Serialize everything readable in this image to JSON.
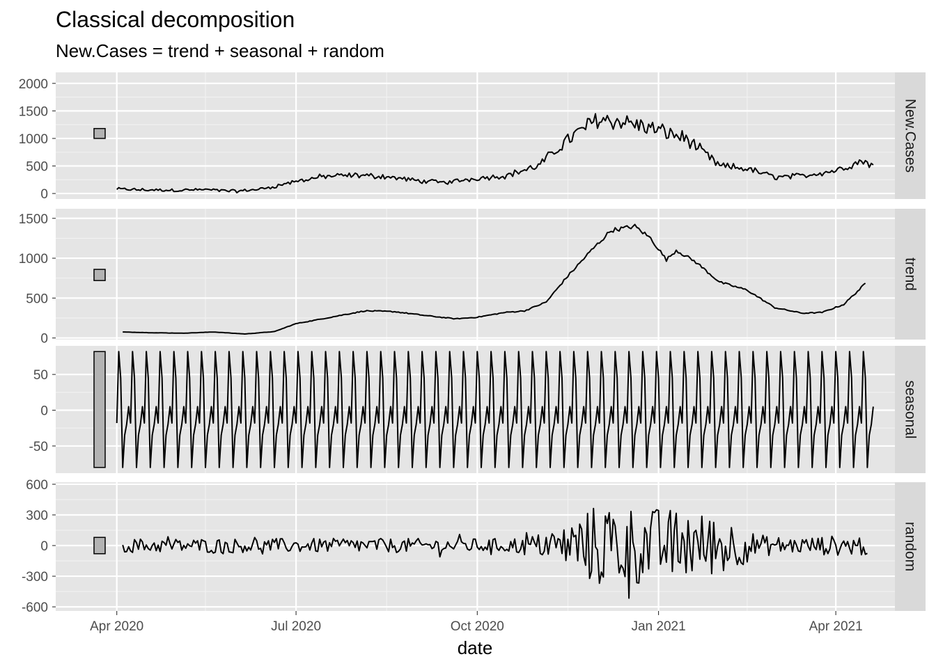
{
  "chart_data": {
    "type": "line",
    "title": "Classical decomposition",
    "subtitle": "New.Cases = trend + seasonal + random",
    "xlabel": "date",
    "x_range": [
      "2020-03-01",
      "2021-05-01"
    ],
    "x_ticks": [
      {
        "date": "2020-04-01",
        "label": "Apr 2020"
      },
      {
        "date": "2020-07-01",
        "label": "Jul 2020"
      },
      {
        "date": "2020-10-01",
        "label": "Oct 2020"
      },
      {
        "date": "2021-01-01",
        "label": "Jan 2021"
      },
      {
        "date": "2021-04-01",
        "label": "Apr 2021"
      }
    ],
    "x_minor": [
      "2020-05-16",
      "2020-08-16",
      "2020-11-16",
      "2021-02-15"
    ],
    "background": "#e5e5e5",
    "strip_color": "#d9d9d9",
    "line_color": "#000000",
    "scale_bar_color": "#b3b3b3",
    "panels": [
      {
        "name": "New.Cases",
        "ylim": [
          -100,
          2200
        ],
        "y_ticks": [
          0,
          500,
          1000,
          1500,
          2000
        ],
        "y_tick_labels": [
          "0",
          "500",
          "1000",
          "1500",
          "2000"
        ],
        "scale_bar": [
          1000,
          1180
        ],
        "points": [
          [
            "2020-04-01",
            80
          ],
          [
            "2020-04-15",
            65
          ],
          [
            "2020-05-01",
            60
          ],
          [
            "2020-05-15",
            70
          ],
          [
            "2020-06-01",
            40
          ],
          [
            "2020-06-15",
            90
          ],
          [
            "2020-07-01",
            220
          ],
          [
            "2020-07-15",
            310
          ],
          [
            "2020-08-01",
            330
          ],
          [
            "2020-08-15",
            310
          ],
          [
            "2020-09-01",
            230
          ],
          [
            "2020-09-15",
            200
          ],
          [
            "2020-10-01",
            280
          ],
          [
            "2020-10-15",
            320
          ],
          [
            "2020-11-01",
            500
          ],
          [
            "2020-11-15",
            950
          ],
          [
            "2020-12-01",
            1350
          ],
          [
            "2020-12-15",
            1300
          ],
          [
            "2021-01-01",
            1150
          ],
          [
            "2021-01-15",
            1000
          ],
          [
            "2021-02-01",
            500
          ],
          [
            "2021-02-15",
            450
          ],
          [
            "2021-03-01",
            300
          ],
          [
            "2021-03-15",
            320
          ],
          [
            "2021-04-01",
            420
          ],
          [
            "2021-04-15",
            600
          ],
          [
            "2021-04-20",
            500
          ]
        ],
        "noise": 0.12
      },
      {
        "name": "trend",
        "ylim": [
          -20,
          1620
        ],
        "y_ticks": [
          0,
          500,
          1000,
          1500
        ],
        "y_tick_labels": [
          "0",
          "500",
          "1000",
          "1500"
        ],
        "scale_bar": [
          720,
          860
        ],
        "points": [
          [
            "2020-04-04",
            75
          ],
          [
            "2020-04-20",
            65
          ],
          [
            "2020-05-05",
            60
          ],
          [
            "2020-05-20",
            75
          ],
          [
            "2020-06-05",
            50
          ],
          [
            "2020-06-20",
            80
          ],
          [
            "2020-07-01",
            180
          ],
          [
            "2020-07-10",
            220
          ],
          [
            "2020-07-25",
            290
          ],
          [
            "2020-08-05",
            340
          ],
          [
            "2020-08-20",
            330
          ],
          [
            "2020-09-05",
            280
          ],
          [
            "2020-09-20",
            240
          ],
          [
            "2020-10-01",
            260
          ],
          [
            "2020-10-15",
            320
          ],
          [
            "2020-10-25",
            340
          ],
          [
            "2020-11-05",
            450
          ],
          [
            "2020-11-15",
            750
          ],
          [
            "2020-11-28",
            1100
          ],
          [
            "2020-12-08",
            1350
          ],
          [
            "2020-12-20",
            1400
          ],
          [
            "2020-12-28",
            1250
          ],
          [
            "2021-01-05",
            980
          ],
          [
            "2021-01-10",
            1100
          ],
          [
            "2021-01-20",
            950
          ],
          [
            "2021-02-01",
            700
          ],
          [
            "2021-02-15",
            600
          ],
          [
            "2021-03-01",
            380
          ],
          [
            "2021-03-15",
            310
          ],
          [
            "2021-03-25",
            320
          ],
          [
            "2021-04-05",
            420
          ],
          [
            "2021-04-16",
            680
          ]
        ],
        "noise": 0.02
      },
      {
        "name": "seasonal",
        "ylim": [
          -88,
          90
        ],
        "y_ticks": [
          -50,
          0,
          50
        ],
        "y_tick_labels": [
          "-50",
          "0",
          "50"
        ],
        "scale_bar": [
          -80,
          82
        ],
        "period": [
          -18,
          82,
          45,
          -80,
          -35,
          -20,
          5
        ],
        "start": "2020-04-01",
        "end": "2021-04-20"
      },
      {
        "name": "random",
        "ylim": [
          -640,
          620
        ],
        "y_ticks": [
          -600,
          -300,
          0,
          300,
          600
        ],
        "y_tick_labels": [
          "-600",
          "-300",
          "0",
          "300",
          "600"
        ],
        "scale_bar": [
          -80,
          80
        ],
        "start": "2020-04-04",
        "end": "2021-04-17",
        "amplitude_points": [
          [
            "2020-04-04",
            70
          ],
          [
            "2020-10-15",
            70
          ],
          [
            "2020-11-10",
            140
          ],
          [
            "2020-11-20",
            300
          ],
          [
            "2020-12-05",
            450
          ],
          [
            "2020-12-25",
            380
          ],
          [
            "2021-01-10",
            360
          ],
          [
            "2021-02-05",
            280
          ],
          [
            "2021-02-20",
            110
          ],
          [
            "2021-03-10",
            80
          ],
          [
            "2021-04-17",
            110
          ]
        ]
      }
    ]
  }
}
